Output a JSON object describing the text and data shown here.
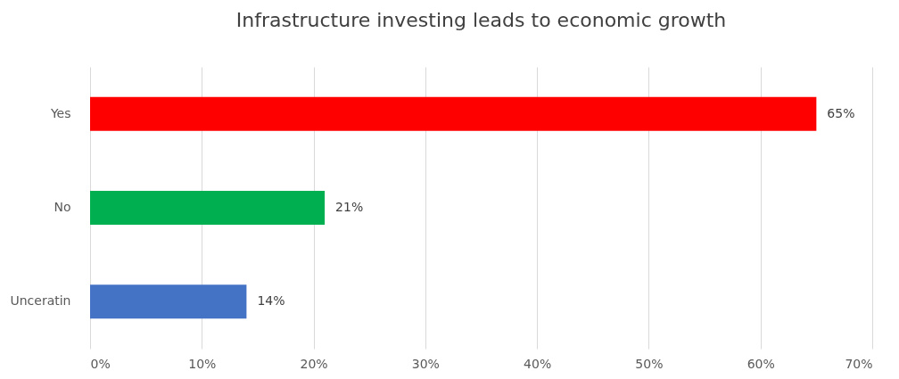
{
  "chart_data": {
    "type": "bar",
    "orientation": "horizontal",
    "title": "Infrastructure investing leads to economic growth",
    "categories": [
      "Yes",
      "No",
      "Unceratin"
    ],
    "values": [
      65,
      21,
      14
    ],
    "colors": [
      "#ff0000",
      "#00b050",
      "#4472c4"
    ],
    "value_labels": [
      "65%",
      "21%",
      "14%"
    ],
    "xlim": [
      0,
      70
    ],
    "xticks": [
      {
        "value": 0,
        "label": "0%"
      },
      {
        "value": 10,
        "label": "10%"
      },
      {
        "value": 20,
        "label": "20%"
      },
      {
        "value": 30,
        "label": "30%"
      },
      {
        "value": 40,
        "label": "40%"
      },
      {
        "value": 50,
        "label": "50%"
      },
      {
        "value": 60,
        "label": "60%"
      },
      {
        "value": 70,
        "label": "70%"
      }
    ],
    "grid": "x",
    "legend": false
  }
}
